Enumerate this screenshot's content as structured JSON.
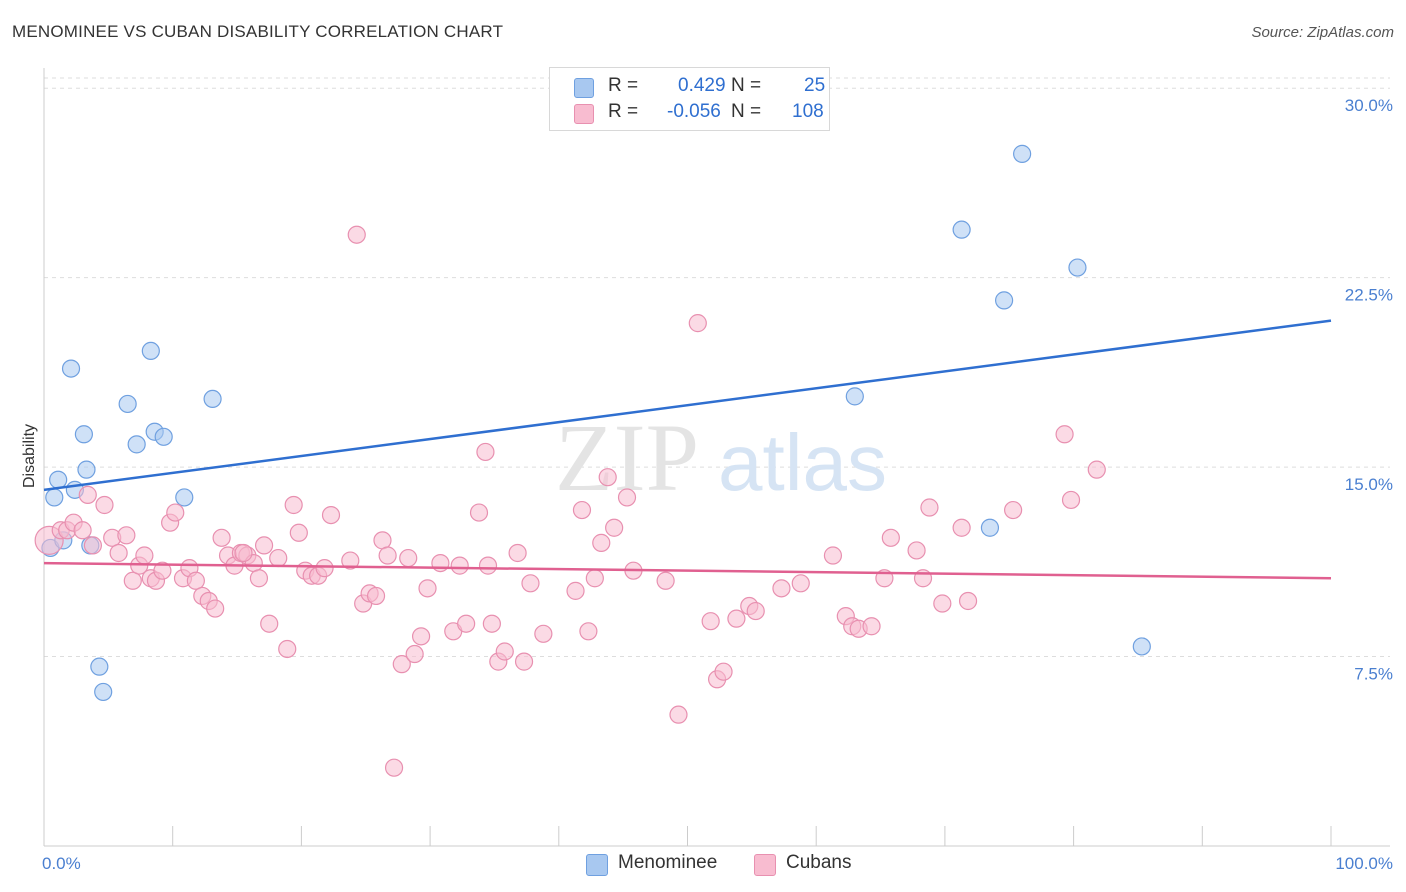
{
  "header": {
    "title": "MENOMINEE VS CUBAN DISABILITY CORRELATION CHART",
    "source": "Source: ZipAtlas.com"
  },
  "watermark": {
    "zip": "ZIP",
    "atlas": "atlas"
  },
  "legend": {
    "rows": [
      {
        "r_label": "R =",
        "r_value": "0.429",
        "n_label": "N =",
        "n_value": "25",
        "color": "#a8c8f0",
        "border": "#6fa0e0"
      },
      {
        "r_label": "R =",
        "r_value": "-0.056",
        "n_label": "N =",
        "n_value": "108",
        "color": "#f8bcd0",
        "border": "#e890b0"
      }
    ]
  },
  "bottom_legend": [
    {
      "label": "Menominee",
      "color": "#a8c8f0",
      "border": "#6fa0e0"
    },
    {
      "label": "Cubans",
      "color": "#f8bcd0",
      "border": "#e890b0"
    }
  ],
  "chart_data": {
    "type": "scatter",
    "xlabel": "",
    "ylabel": "Disability",
    "xlim": [
      0,
      100
    ],
    "ylim": [
      0,
      30.8
    ],
    "x_tick_labels": [
      {
        "value": 0,
        "label": "0.0%"
      },
      {
        "value": 100,
        "label": "100.0%"
      }
    ],
    "y_tick_labels": [
      {
        "value": 7.5,
        "label": "7.5%"
      },
      {
        "value": 15,
        "label": "15.0%"
      },
      {
        "value": 22.5,
        "label": "22.5%"
      },
      {
        "value": 30,
        "label": "30.0%"
      }
    ],
    "series": [
      {
        "name": "Menominee",
        "color": "#6fa0e0",
        "fill": "#a8c8f0",
        "trend": {
          "x": [
            0,
            100
          ],
          "y": [
            14.1,
            20.8
          ],
          "color": "#2f6fd0"
        },
        "points": [
          [
            0.5,
            11.8
          ],
          [
            0.8,
            13.8
          ],
          [
            1.1,
            14.5
          ],
          [
            1.5,
            12.1
          ],
          [
            2.1,
            18.9
          ],
          [
            2.4,
            14.1
          ],
          [
            3.1,
            16.3
          ],
          [
            3.3,
            14.9
          ],
          [
            3.6,
            11.9
          ],
          [
            4.3,
            7.1
          ],
          [
            4.6,
            6.1
          ],
          [
            6.5,
            17.5
          ],
          [
            7.2,
            15.9
          ],
          [
            8.3,
            19.6
          ],
          [
            8.6,
            16.4
          ],
          [
            9.3,
            16.2
          ],
          [
            10.9,
            13.8
          ],
          [
            13.1,
            17.7
          ],
          [
            63.0,
            17.8
          ],
          [
            71.3,
            24.4
          ],
          [
            73.5,
            12.6
          ],
          [
            74.6,
            21.6
          ],
          [
            76.0,
            27.4
          ],
          [
            80.3,
            22.9
          ],
          [
            85.3,
            7.9
          ]
        ]
      },
      {
        "name": "Cubans",
        "color": "#e890b0",
        "fill": "#f8bcd0",
        "trend": {
          "x": [
            0,
            100
          ],
          "y": [
            11.2,
            10.6
          ],
          "color": "#e06090"
        },
        "points": [
          [
            0.4,
            12.1
          ],
          [
            1.3,
            12.5
          ],
          [
            1.8,
            12.5
          ],
          [
            2.3,
            12.8
          ],
          [
            3.0,
            12.5
          ],
          [
            3.4,
            13.9
          ],
          [
            3.8,
            11.9
          ],
          [
            4.7,
            13.5
          ],
          [
            5.3,
            12.2
          ],
          [
            5.8,
            11.6
          ],
          [
            6.4,
            12.3
          ],
          [
            6.9,
            10.5
          ],
          [
            7.4,
            11.1
          ],
          [
            7.8,
            11.5
          ],
          [
            8.3,
            10.6
          ],
          [
            8.7,
            10.5
          ],
          [
            9.2,
            10.9
          ],
          [
            9.8,
            12.8
          ],
          [
            10.2,
            13.2
          ],
          [
            10.8,
            10.6
          ],
          [
            11.3,
            11.0
          ],
          [
            11.8,
            10.5
          ],
          [
            12.3,
            9.9
          ],
          [
            12.8,
            9.7
          ],
          [
            13.3,
            9.4
          ],
          [
            13.8,
            12.2
          ],
          [
            14.3,
            11.5
          ],
          [
            14.8,
            11.1
          ],
          [
            15.3,
            11.6
          ],
          [
            15.8,
            11.5
          ],
          [
            16.3,
            11.2
          ],
          [
            16.7,
            10.6
          ],
          [
            17.1,
            11.9
          ],
          [
            17.5,
            8.8
          ],
          [
            18.2,
            11.4
          ],
          [
            18.9,
            7.8
          ],
          [
            19.4,
            13.5
          ],
          [
            19.8,
            12.4
          ],
          [
            20.3,
            10.9
          ],
          [
            20.8,
            10.7
          ],
          [
            21.3,
            10.7
          ],
          [
            21.8,
            11.0
          ],
          [
            22.3,
            13.1
          ],
          [
            23.8,
            11.3
          ],
          [
            24.3,
            24.2
          ],
          [
            24.8,
            9.6
          ],
          [
            25.3,
            10.0
          ],
          [
            25.8,
            9.9
          ],
          [
            26.3,
            12.1
          ],
          [
            26.7,
            11.5
          ],
          [
            27.2,
            3.1
          ],
          [
            27.8,
            7.2
          ],
          [
            28.3,
            11.4
          ],
          [
            28.8,
            7.6
          ],
          [
            29.3,
            8.3
          ],
          [
            29.8,
            10.2
          ],
          [
            30.8,
            11.2
          ],
          [
            31.8,
            8.5
          ],
          [
            32.3,
            11.1
          ],
          [
            32.8,
            8.8
          ],
          [
            33.8,
            13.2
          ],
          [
            34.3,
            15.6
          ],
          [
            34.8,
            8.8
          ],
          [
            35.3,
            7.3
          ],
          [
            35.8,
            7.7
          ],
          [
            36.8,
            11.6
          ],
          [
            37.3,
            7.3
          ],
          [
            37.8,
            10.4
          ],
          [
            38.8,
            8.4
          ],
          [
            41.3,
            10.1
          ],
          [
            41.8,
            13.3
          ],
          [
            42.3,
            8.5
          ],
          [
            42.8,
            10.6
          ],
          [
            43.3,
            12.0
          ],
          [
            43.8,
            14.6
          ],
          [
            44.3,
            12.6
          ],
          [
            45.3,
            13.8
          ],
          [
            45.8,
            10.9
          ],
          [
            48.3,
            10.5
          ],
          [
            49.3,
            5.2
          ],
          [
            50.8,
            20.7
          ],
          [
            51.8,
            8.9
          ],
          [
            52.3,
            6.6
          ],
          [
            52.8,
            6.9
          ],
          [
            53.8,
            9.0
          ],
          [
            54.8,
            9.5
          ],
          [
            55.3,
            9.3
          ],
          [
            57.3,
            10.2
          ],
          [
            58.8,
            10.4
          ],
          [
            61.3,
            11.5
          ],
          [
            62.3,
            9.1
          ],
          [
            62.8,
            8.7
          ],
          [
            63.3,
            8.6
          ],
          [
            64.3,
            8.7
          ],
          [
            65.3,
            10.6
          ],
          [
            65.8,
            12.2
          ],
          [
            67.8,
            11.7
          ],
          [
            68.3,
            10.6
          ],
          [
            68.8,
            13.4
          ],
          [
            69.8,
            9.6
          ],
          [
            71.3,
            12.6
          ],
          [
            71.8,
            9.7
          ],
          [
            75.3,
            13.3
          ],
          [
            79.3,
            16.3
          ],
          [
            79.8,
            13.7
          ],
          [
            81.8,
            14.9
          ],
          [
            15.5,
            11.6
          ],
          [
            34.5,
            11.1
          ]
        ]
      }
    ],
    "grid": true,
    "legend_position": "top-center"
  }
}
